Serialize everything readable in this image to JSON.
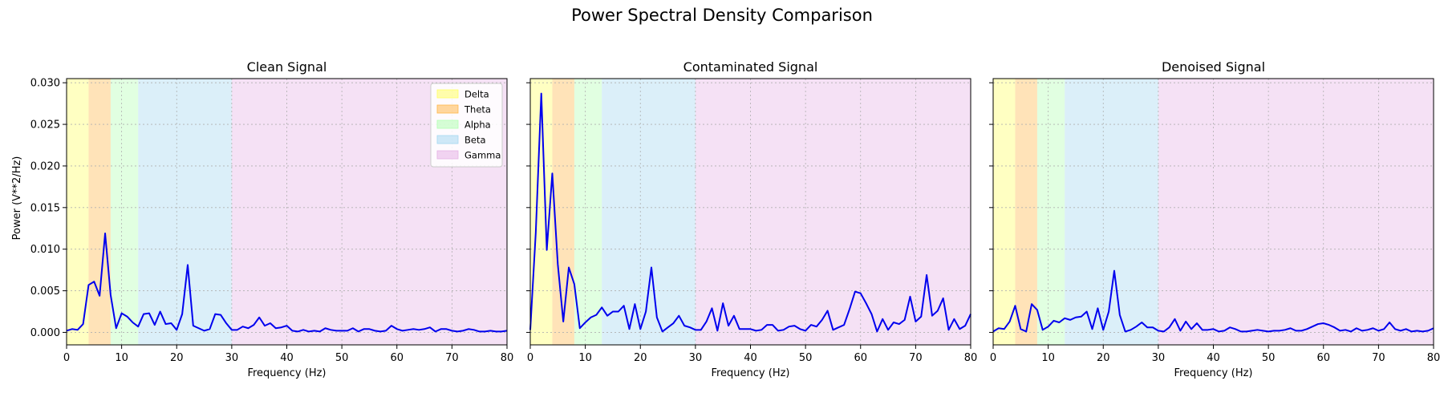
{
  "suptitle": "Power Spectral Density Comparison",
  "shared": {
    "ylabel": "Power (V**2/Hz)",
    "xlabel": "Frequency (Hz)",
    "xlim": [
      0,
      80
    ],
    "ylim": [
      -0.0015,
      0.0305
    ],
    "xticks": [
      0,
      10,
      20,
      30,
      40,
      50,
      60,
      70,
      80
    ],
    "yticks": [
      0.0,
      0.005,
      0.01,
      0.015,
      0.02,
      0.025,
      0.03
    ],
    "ytick_labels": [
      "0.000",
      "0.005",
      "0.010",
      "0.015",
      "0.020",
      "0.025",
      "0.030"
    ],
    "grid": true,
    "line_color": "#0000ee"
  },
  "bands": [
    {
      "name": "Delta",
      "from": 0,
      "to": 4,
      "color": "#ffff66"
    },
    {
      "name": "Theta",
      "from": 4,
      "to": 8,
      "color": "#ffb84d"
    },
    {
      "name": "Alpha",
      "from": 8,
      "to": 13,
      "color": "#b3ffb3"
    },
    {
      "name": "Beta",
      "from": 13,
      "to": 30,
      "color": "#a6d8f0"
    },
    {
      "name": "Gamma",
      "from": 30,
      "to": 80,
      "color": "#e6b3e6"
    }
  ],
  "legend_position": "top-right",
  "chart_data": [
    {
      "type": "line",
      "title": "Clean Signal",
      "x": [
        0,
        1,
        2,
        3,
        4,
        5,
        6,
        7,
        8,
        9,
        10,
        11,
        12,
        13,
        14,
        15,
        16,
        17,
        18,
        19,
        20,
        21,
        22,
        23,
        24,
        25,
        26,
        27,
        28,
        29,
        30,
        31,
        32,
        33,
        34,
        35,
        36,
        37,
        38,
        39,
        40,
        41,
        42,
        43,
        44,
        45,
        46,
        47,
        48,
        49,
        50,
        51,
        52,
        53,
        54,
        55,
        56,
        57,
        58,
        59,
        60,
        61,
        62,
        63,
        64,
        65,
        66,
        67,
        68,
        69,
        70,
        71,
        72,
        73,
        74,
        75,
        76,
        77,
        78,
        79,
        80
      ],
      "y": [
        0.0002,
        0.0004,
        0.0003,
        0.001,
        0.0057,
        0.0061,
        0.0044,
        0.0119,
        0.0045,
        0.0005,
        0.0023,
        0.0019,
        0.0012,
        0.0007,
        0.0022,
        0.0023,
        0.0009,
        0.0025,
        0.001,
        0.0011,
        0.0003,
        0.0022,
        0.0081,
        0.0008,
        0.0005,
        0.0002,
        0.0004,
        0.0022,
        0.0021,
        0.0011,
        0.0003,
        0.0003,
        0.0007,
        0.0005,
        0.0009,
        0.0018,
        0.0008,
        0.0011,
        0.0005,
        0.0006,
        0.0008,
        0.0002,
        0.0001,
        0.0003,
        0.0001,
        0.0002,
        0.0001,
        0.0005,
        0.0003,
        0.0002,
        0.0002,
        0.0002,
        0.0005,
        0.0001,
        0.0004,
        0.0004,
        0.0002,
        0.0001,
        0.0002,
        0.0008,
        0.0004,
        0.0002,
        0.0003,
        0.0004,
        0.0003,
        0.0004,
        0.0006,
        0.0001,
        0.0004,
        0.0004,
        0.0002,
        0.0001,
        0.0002,
        0.0004,
        0.0003,
        0.0001,
        0.0001,
        0.0002,
        0.0001,
        0.0001,
        0.0002
      ]
    },
    {
      "type": "line",
      "title": "Contaminated Signal",
      "x": [
        0,
        1,
        2,
        3,
        4,
        5,
        6,
        7,
        8,
        9,
        10,
        11,
        12,
        13,
        14,
        15,
        16,
        17,
        18,
        19,
        20,
        21,
        22,
        23,
        24,
        25,
        26,
        27,
        28,
        29,
        30,
        31,
        32,
        33,
        34,
        35,
        36,
        37,
        38,
        39,
        40,
        41,
        42,
        43,
        44,
        45,
        46,
        47,
        48,
        49,
        50,
        51,
        52,
        53,
        54,
        55,
        56,
        57,
        58,
        59,
        60,
        61,
        62,
        63,
        64,
        65,
        66,
        67,
        68,
        69,
        70,
        71,
        72,
        73,
        74,
        75,
        76,
        77,
        78,
        79,
        80
      ],
      "y": [
        0.0003,
        0.012,
        0.0287,
        0.0099,
        0.0191,
        0.0082,
        0.0013,
        0.0078,
        0.0058,
        0.0005,
        0.0012,
        0.0018,
        0.0021,
        0.003,
        0.002,
        0.0025,
        0.0025,
        0.0032,
        0.0004,
        0.0034,
        0.0004,
        0.0025,
        0.0078,
        0.0018,
        0.0001,
        0.0006,
        0.0011,
        0.002,
        0.0008,
        0.0006,
        0.0003,
        0.0003,
        0.0013,
        0.0029,
        0.0002,
        0.0035,
        0.0008,
        0.002,
        0.0004,
        0.0004,
        0.0004,
        0.0002,
        0.0003,
        0.0009,
        0.0009,
        0.0002,
        0.0003,
        0.0007,
        0.0008,
        0.0004,
        0.0002,
        0.0009,
        0.0007,
        0.0015,
        0.0026,
        0.0003,
        0.0006,
        0.0009,
        0.0028,
        0.0049,
        0.0047,
        0.0035,
        0.0022,
        0.0001,
        0.0016,
        0.0003,
        0.0012,
        0.001,
        0.0015,
        0.0043,
        0.0013,
        0.0019,
        0.0069,
        0.002,
        0.0026,
        0.0041,
        0.0003,
        0.0016,
        0.0004,
        0.0008,
        0.0022
      ]
    },
    {
      "type": "line",
      "title": "Denoised Signal",
      "x": [
        0,
        1,
        2,
        3,
        4,
        5,
        6,
        7,
        8,
        9,
        10,
        11,
        12,
        13,
        14,
        15,
        16,
        17,
        18,
        19,
        20,
        21,
        22,
        23,
        24,
        25,
        26,
        27,
        28,
        29,
        30,
        31,
        32,
        33,
        34,
        35,
        36,
        37,
        38,
        39,
        40,
        41,
        42,
        43,
        44,
        45,
        46,
        47,
        48,
        49,
        50,
        51,
        52,
        53,
        54,
        55,
        56,
        57,
        58,
        59,
        60,
        61,
        62,
        63,
        64,
        65,
        66,
        67,
        68,
        69,
        70,
        71,
        72,
        73,
        74,
        75,
        76,
        77,
        78,
        79,
        80
      ],
      "y": [
        0.0001,
        0.0005,
        0.0004,
        0.0013,
        0.0032,
        0.0004,
        0.0001,
        0.0034,
        0.0027,
        0.0003,
        0.0007,
        0.0014,
        0.0012,
        0.0017,
        0.0015,
        0.0018,
        0.0019,
        0.0025,
        0.0004,
        0.0029,
        0.0003,
        0.0025,
        0.0074,
        0.0021,
        0.0001,
        0.0003,
        0.0007,
        0.0012,
        0.0006,
        0.0006,
        0.0002,
        0.0001,
        0.0006,
        0.0016,
        0.0002,
        0.0013,
        0.0004,
        0.0011,
        0.0003,
        0.0003,
        0.0004,
        0.0001,
        0.0002,
        0.0006,
        0.0004,
        0.0001,
        0.0001,
        0.0002,
        0.0003,
        0.0002,
        0.0001,
        0.0002,
        0.0002,
        0.0003,
        0.0005,
        0.0002,
        0.0002,
        0.0004,
        0.0007,
        0.001,
        0.0011,
        0.0009,
        0.0006,
        0.0002,
        0.0003,
        0.0001,
        0.0005,
        0.0002,
        0.0003,
        0.0005,
        0.0002,
        0.0004,
        0.0012,
        0.0004,
        0.0002,
        0.0004,
        0.0001,
        0.0002,
        0.0001,
        0.0002,
        0.0005
      ]
    }
  ]
}
